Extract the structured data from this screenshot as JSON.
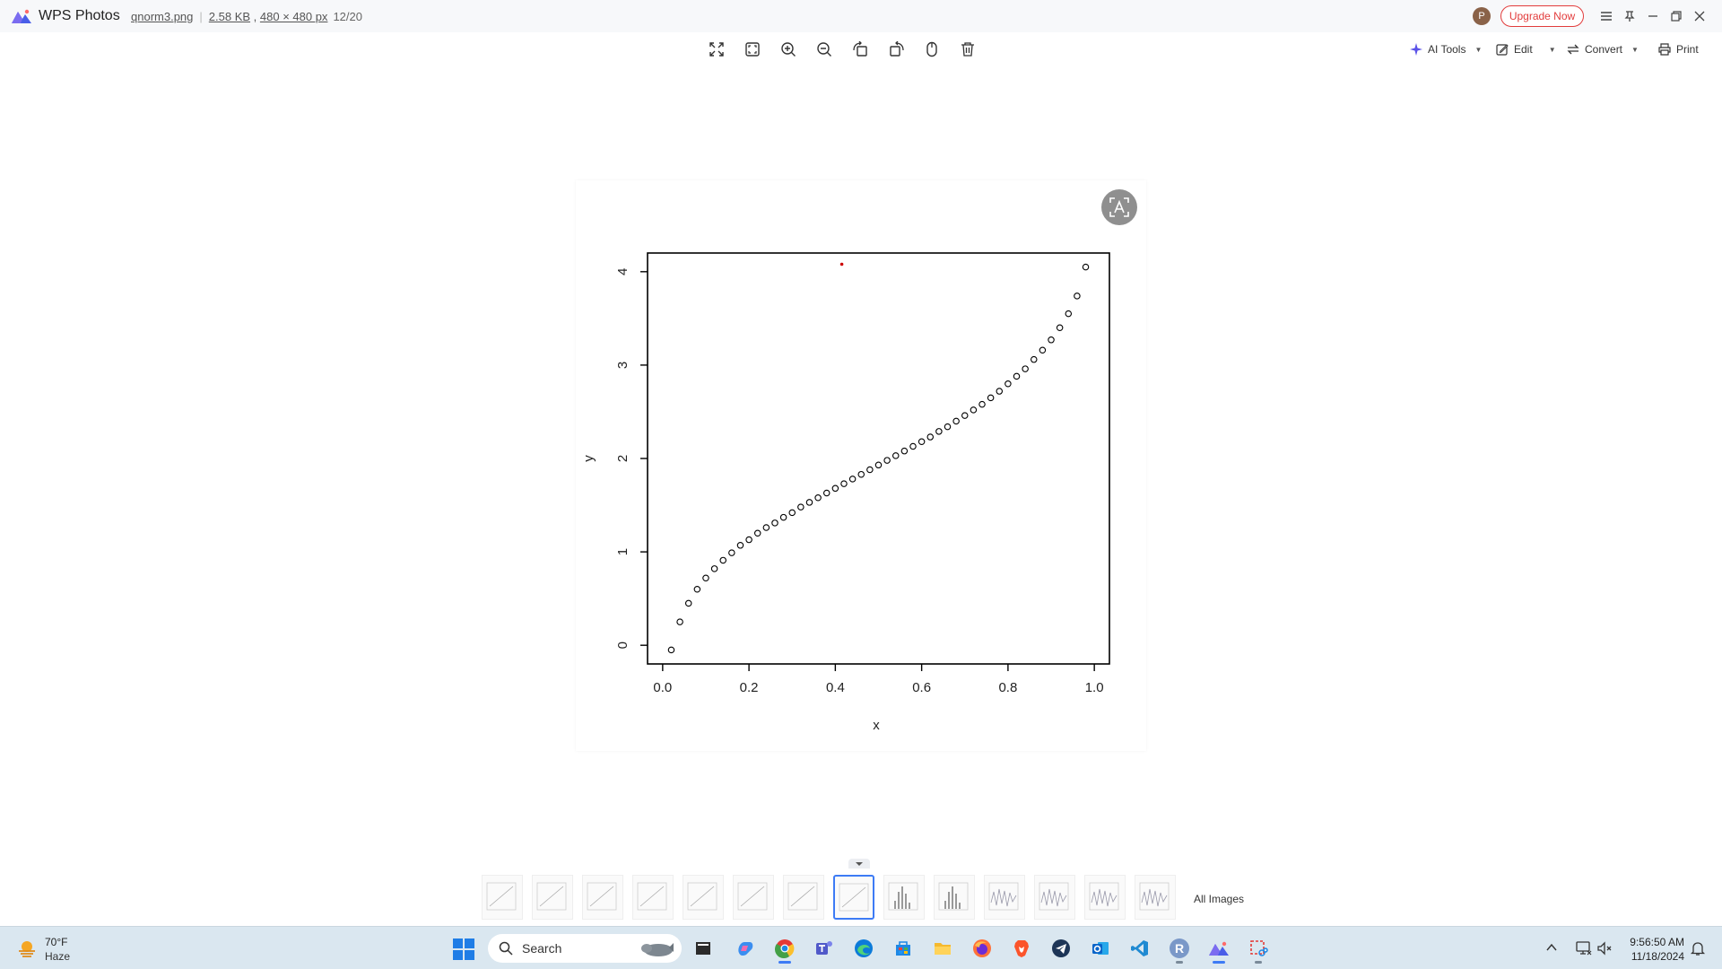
{
  "app": {
    "name": "WPS Photos",
    "file_name": "qnorm3.png",
    "file_size": "2.58 KB",
    "dimensions": "480 × 480 px",
    "position": "12/20",
    "avatar_letter": "P",
    "upgrade_label": "Upgrade Now"
  },
  "toolbar": {
    "tools": [
      "fit-screen-icon",
      "actual-size-icon",
      "zoom-in-icon",
      "zoom-out-icon",
      "rotate-left-icon",
      "rotate-right-icon",
      "mouse-icon",
      "delete-icon"
    ],
    "ai_tools_label": "AI Tools",
    "edit_label": "Edit",
    "convert_label": "Convert",
    "print_label": "Print"
  },
  "chart_data": {
    "type": "scatter",
    "xlabel": "x",
    "ylabel": "y",
    "xlim": [
      -0.035,
      1.035
    ],
    "ylim": [
      -0.2,
      4.2
    ],
    "xticks": [
      "0.0",
      "0.2",
      "0.4",
      "0.6",
      "0.8",
      "1.0"
    ],
    "xtick_values": [
      0.0,
      0.2,
      0.4,
      0.6,
      0.8,
      1.0
    ],
    "yticks": [
      "0",
      "1",
      "2",
      "3",
      "4"
    ],
    "ytick_values": [
      0,
      1,
      2,
      3,
      4
    ],
    "series": [
      {
        "marker": "open-circle",
        "color": "#000000",
        "x": [
          0.02,
          0.04,
          0.06,
          0.08,
          0.1,
          0.12,
          0.14,
          0.16,
          0.18,
          0.2,
          0.22,
          0.24,
          0.26,
          0.28,
          0.3,
          0.32,
          0.34,
          0.36,
          0.38,
          0.4,
          0.42,
          0.44,
          0.46,
          0.48,
          0.5,
          0.52,
          0.54,
          0.56,
          0.58,
          0.6,
          0.62,
          0.64,
          0.66,
          0.68,
          0.7,
          0.72,
          0.74,
          0.76,
          0.78,
          0.8,
          0.82,
          0.84,
          0.86,
          0.88,
          0.9,
          0.92,
          0.94,
          0.96,
          0.98
        ],
        "y": [
          -0.05,
          0.25,
          0.45,
          0.6,
          0.72,
          0.82,
          0.91,
          0.99,
          1.07,
          1.13,
          1.2,
          1.26,
          1.31,
          1.37,
          1.42,
          1.48,
          1.53,
          1.58,
          1.63,
          1.68,
          1.73,
          1.78,
          1.83,
          1.88,
          1.93,
          1.98,
          2.03,
          2.08,
          2.13,
          2.18,
          2.23,
          2.29,
          2.34,
          2.4,
          2.46,
          2.52,
          2.58,
          2.65,
          2.72,
          2.8,
          2.88,
          2.96,
          3.06,
          3.16,
          3.27,
          3.4,
          3.55,
          3.74,
          4.05
        ]
      },
      {
        "marker": "point",
        "color": "#cc0000",
        "x": [
          0.415
        ],
        "y": [
          4.08
        ]
      }
    ],
    "grid": false,
    "legend": "none"
  },
  "filmstrip": {
    "count": 14,
    "active_index": 7,
    "all_images_label": "All Images"
  },
  "taskbar": {
    "weather_temp": "70°F",
    "weather_desc": "Haze",
    "search_label": "Search",
    "apps": [
      "file-explorer-dark-icon",
      "copilot-icon",
      "chrome-icon",
      "teams-icon",
      "edge-icon",
      "store-icon",
      "folder-icon",
      "firefox-icon",
      "brave-icon",
      "telegram-icon",
      "outlook-icon",
      "vscode-icon",
      "r-icon",
      "wps-photos-icon",
      "snipping-tool-icon"
    ],
    "time": "9:56:50 AM",
    "date": "11/18/2024"
  }
}
